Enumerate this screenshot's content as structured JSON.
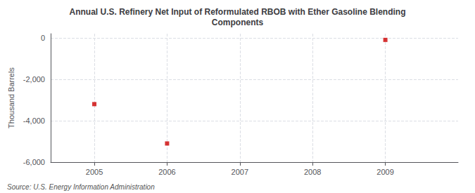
{
  "chart_data": {
    "type": "scatter",
    "title": "Annual U.S. Refinery Net Input of Reformulated RBOB with Ether Gasoline Blending\nComponents",
    "ylabel": "Thousand Barrels",
    "annotations": [
      "Source: U.S. Energy Information Administration"
    ],
    "x": [
      2005,
      2006,
      2009
    ],
    "values": [
      -3200,
      -5100,
      -100
    ],
    "color": "#cc0000",
    "marker": "square",
    "xlim": [
      2004.4,
      2010.0
    ],
    "ylim": [
      -6000,
      200
    ],
    "xticks": [
      2005,
      2006,
      2007,
      2008,
      2009
    ],
    "yticks": [
      0,
      {
        "value": -2000,
        "label": "-2,000"
      },
      {
        "value": -4000,
        "label": "-4,000"
      },
      {
        "value": -6000,
        "label": "-6,000"
      }
    ],
    "grid": true
  }
}
